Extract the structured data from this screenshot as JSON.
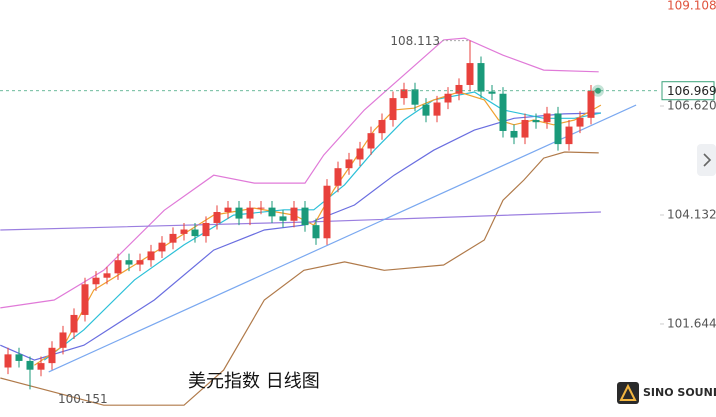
{
  "chart_data": {
    "type": "candlestick",
    "title": "美元指数 日线图",
    "watermark": "SINO SOUND",
    "ylim": [
      99.52,
      109.04
    ],
    "yticks": [
      109.108,
      {
        "value": 106.62,
        "label": "106.620"
      },
      104.132,
      101.644
    ],
    "grid": false,
    "up_color": "#e8413c",
    "down_color": "#1a9a7a",
    "last_price_color": "#3aa27a",
    "categories": [
      null,
      null,
      null,
      null,
      null,
      null,
      null,
      null,
      null,
      null,
      null,
      null,
      null,
      null,
      null,
      null,
      null,
      null,
      null,
      null,
      null,
      null,
      null,
      null,
      null,
      null,
      null,
      null,
      null,
      null,
      null,
      null,
      null,
      null,
      null,
      null,
      null,
      null,
      null,
      null,
      null,
      null,
      null,
      null,
      null,
      null,
      null,
      null,
      null,
      null,
      null,
      null,
      null,
      null
    ],
    "candles": {
      "open": [
        100.65,
        100.95,
        100.8,
        100.6,
        100.75,
        101.1,
        101.45,
        101.85,
        102.55,
        102.7,
        102.8,
        103.1,
        103.0,
        103.1,
        103.3,
        103.5,
        103.7,
        103.8,
        103.65,
        103.95,
        104.2,
        104.3,
        104.05,
        104.3,
        104.3,
        104.1,
        104.0,
        104.3,
        103.9,
        103.6,
        104.8,
        105.2,
        105.4,
        105.65,
        106.0,
        106.3,
        106.8,
        107.0,
        106.65,
        106.4,
        106.7,
        106.9,
        107.1,
        107.6,
        106.95,
        106.9,
        106.05,
        105.9,
        106.3,
        106.25,
        106.45,
        105.75,
        106.15,
        106.35
      ],
      "high": [
        101.1,
        101.1,
        100.9,
        100.9,
        101.25,
        101.6,
        102.0,
        102.7,
        102.85,
        102.95,
        103.25,
        103.25,
        103.25,
        103.45,
        103.65,
        103.85,
        103.95,
        103.95,
        104.1,
        104.35,
        104.45,
        104.45,
        104.45,
        104.45,
        104.45,
        104.25,
        104.45,
        104.45,
        104.05,
        104.95,
        105.35,
        105.55,
        105.8,
        106.15,
        106.45,
        106.95,
        107.15,
        107.15,
        106.8,
        106.85,
        107.05,
        107.25,
        108.113,
        107.75,
        107.1,
        107.05,
        106.2,
        106.45,
        106.45,
        106.6,
        106.6,
        106.3,
        106.5,
        107.1
      ],
      "low": [
        100.5,
        100.65,
        100.151,
        100.45,
        100.6,
        100.95,
        101.3,
        101.7,
        102.4,
        102.55,
        102.65,
        102.85,
        102.85,
        102.95,
        103.15,
        103.35,
        103.55,
        103.5,
        103.5,
        103.8,
        104.05,
        103.9,
        103.9,
        104.15,
        103.95,
        103.85,
        103.85,
        103.75,
        103.45,
        103.45,
        104.65,
        105.05,
        105.25,
        105.5,
        105.85,
        106.15,
        106.65,
        106.5,
        106.25,
        106.25,
        106.55,
        106.75,
        106.95,
        106.8,
        106.75,
        105.9,
        105.75,
        105.75,
        106.1,
        106.1,
        105.6,
        105.6,
        106.0,
        106.2
      ],
      "close": [
        100.95,
        100.8,
        100.6,
        100.75,
        101.1,
        101.45,
        101.85,
        102.55,
        102.7,
        102.8,
        103.1,
        103.0,
        103.1,
        103.3,
        103.5,
        103.7,
        103.8,
        103.65,
        103.95,
        104.2,
        104.3,
        104.05,
        104.3,
        104.3,
        104.1,
        104.0,
        104.3,
        103.9,
        103.6,
        104.8,
        105.2,
        105.4,
        105.65,
        106.0,
        106.3,
        106.8,
        107.0,
        106.65,
        106.4,
        106.7,
        106.9,
        107.1,
        107.6,
        106.95,
        106.9,
        106.05,
        105.9,
        106.3,
        106.25,
        106.45,
        105.75,
        106.15,
        106.35,
        106.969
      ]
    },
    "lines": [
      {
        "color": "#e07ad8",
        "x": [
          -0.7,
          4.2,
          8.7,
          14.2,
          18.7,
          22.4,
          27,
          28.7,
          32.4,
          36,
          39.6,
          41.5,
          45,
          48.7,
          53.7
        ],
        "values": [
          102.01,
          102.19,
          102.87,
          104.24,
          105.04,
          104.86,
          104.86,
          105.5,
          106.53,
          107.33,
          108.13,
          108.17,
          107.78,
          107.44,
          107.4
        ]
      },
      {
        "color": "#b07a4a",
        "x": [
          -0.7,
          8.7,
          16,
          19.6,
          23.3,
          26.9,
          30.6,
          34.2,
          39.6,
          43.3,
          45,
          46.9,
          48.7,
          50.6,
          53.7
        ],
        "values": [
          100.41,
          99.79,
          99.79,
          100.59,
          102.19,
          102.87,
          103.06,
          102.87,
          102.99,
          103.56,
          104.47,
          104.93,
          105.43,
          105.57,
          105.55
        ]
      },
      {
        "color": "#6a6ee0",
        "x": [
          -0.7,
          2.4,
          6.9,
          13.3,
          18.7,
          23.3,
          26.9,
          31.5,
          35.1,
          38.7,
          42.4,
          46,
          50.5,
          53.9
        ],
        "values": [
          101.16,
          100.82,
          101.16,
          102.19,
          103.33,
          103.79,
          103.9,
          104.36,
          105.04,
          105.61,
          106.07,
          106.34,
          106.44,
          106.46
        ]
      },
      {
        "color": "#2cc0d8",
        "x": [
          3.3,
          6.9,
          11.5,
          16,
          20.5,
          25.1,
          27.8,
          30.6,
          33.3,
          36,
          38.7,
          42.4,
          45,
          48.7,
          51.5,
          53.9
        ],
        "values": [
          100.82,
          101.51,
          102.65,
          103.45,
          104.13,
          104.25,
          104.25,
          104.82,
          105.61,
          106.3,
          106.76,
          106.94,
          106.53,
          106.34,
          106.34,
          106.46
        ]
      },
      {
        "color": "#f0a030",
        "x": [
          2.4,
          5.1,
          7.8,
          11.5,
          15.1,
          18.7,
          22.4,
          26,
          27.8,
          29.6,
          31.5,
          33.3,
          35.1,
          36.9,
          38.7,
          41,
          43.3,
          44.6,
          46,
          47.8,
          49.6,
          51.5,
          53.9
        ],
        "values": [
          100.7,
          101.16,
          102.42,
          102.99,
          103.56,
          104.13,
          104.29,
          104.13,
          103.9,
          104.7,
          105.39,
          106.07,
          106.53,
          106.57,
          106.76,
          106.94,
          106.76,
          106.3,
          106.19,
          106.3,
          106.19,
          106.3,
          106.64
        ]
      },
      {
        "color": "#9b7fe0",
        "x": [
          -0.7,
          26.9,
          53.9
        ],
        "values": [
          103.79,
          103.97,
          104.2
        ]
      },
      {
        "color": "#7aa8f0",
        "x": [
          3.7,
          57.1
        ],
        "values": [
          100.55,
          106.64
        ]
      }
    ]
  }
}
